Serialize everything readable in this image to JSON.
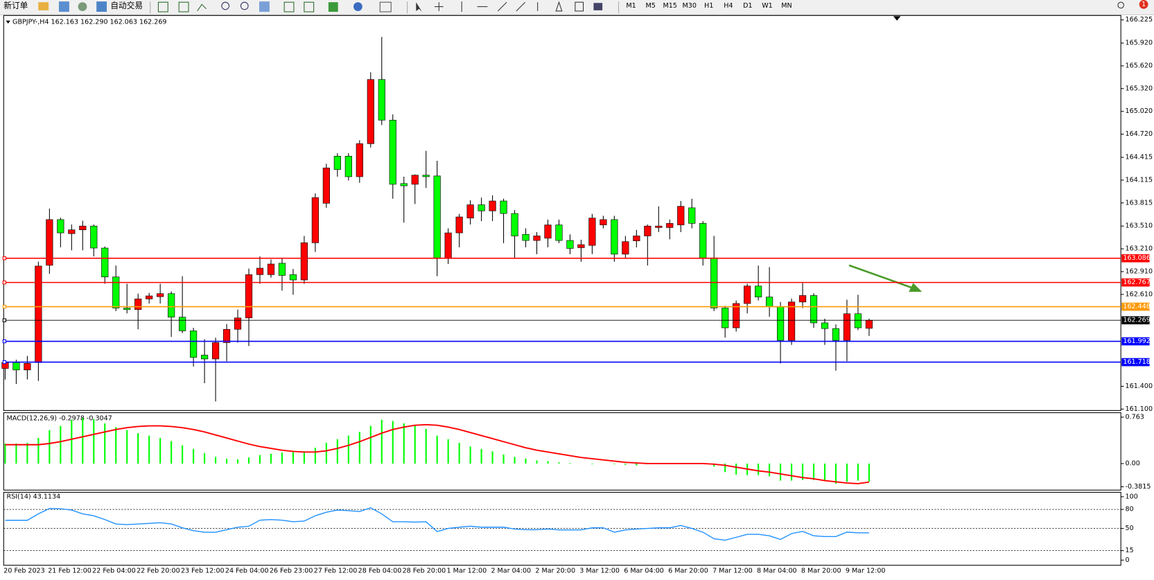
{
  "toolbar": {
    "new_order": "新订单",
    "auto_trading": "自动交易",
    "timeframes": [
      "M1",
      "M5",
      "M15",
      "M30",
      "H1",
      "H4",
      "D1",
      "W1",
      "MN"
    ],
    "badge": "1"
  },
  "chart_data": [
    {
      "type": "candlestick",
      "title": "GBPJPY-,H4  162.163 162.290 162.063 162.269",
      "categories": [
        "20 Feb 2023",
        null,
        null,
        null,
        "21 Feb 12:00",
        null,
        null,
        null,
        "22 Feb 04:00",
        null,
        null,
        null,
        "22 Feb 20:00",
        null,
        null,
        null,
        "23 Feb 12:00",
        null,
        null,
        null,
        "24 Feb 04:00",
        null,
        null,
        null,
        "26 Feb 23:00",
        null,
        null,
        null,
        "27 Feb 12:00",
        null,
        null,
        null,
        "28 Feb 04:00",
        null,
        null,
        null,
        "28 Feb 20:00",
        null,
        null,
        null,
        "1 Mar 12:00",
        null,
        null,
        null,
        "2 Mar 04:00",
        null,
        null,
        null,
        "2 Mar 20:00",
        null,
        null,
        null,
        "3 Mar 12:00",
        null,
        null,
        null,
        "6 Mar 04:00",
        null,
        null,
        null,
        "6 Mar 20:00",
        null,
        null,
        null,
        "7 Mar 12:00",
        null,
        null,
        null,
        "8 Mar 04:00",
        null,
        null,
        null,
        "8 Mar 20:00",
        null,
        null,
        null,
        "9 Mar 12:00",
        null,
        null
      ],
      "open": [
        161.634,
        161.712,
        161.615,
        161.712,
        162.993,
        163.595,
        163.41,
        163.46,
        163.51,
        163.22,
        162.84,
        162.43,
        162.41,
        162.55,
        162.58,
        162.62,
        162.31,
        162.13,
        161.81,
        161.76,
        161.975,
        162.15,
        162.3,
        162.87,
        162.87,
        163.02,
        162.87,
        162.8,
        163.29,
        163.81,
        164.43,
        164.43,
        164.16,
        164.595,
        165.44,
        164.905,
        164.07,
        164.06,
        164.18,
        164.17,
        163.09,
        163.42,
        163.615,
        163.79,
        163.71,
        163.84,
        163.675,
        163.4,
        163.32,
        163.35,
        163.525,
        163.32,
        163.225,
        163.255,
        163.525,
        163.595,
        163.14,
        163.315,
        163.38,
        163.49,
        163.49,
        163.525,
        163.75,
        163.545,
        163.09,
        162.43,
        162.17,
        162.49,
        162.72,
        162.575,
        162.45,
        162.005,
        162.51,
        162.595,
        162.235,
        162.16,
        162.005,
        162.355,
        162.163
      ],
      "high": [
        161.731,
        161.75,
        161.8,
        163.041,
        163.74,
        163.62,
        163.53,
        163.58,
        163.53,
        163.24,
        162.99,
        162.75,
        162.62,
        162.63,
        162.75,
        162.65,
        162.85,
        162.17,
        162.02,
        162.04,
        162.22,
        162.41,
        162.95,
        163.11,
        163.07,
        163.09,
        162.945,
        163.38,
        163.94,
        164.33,
        164.47,
        164.47,
        164.64,
        165.535,
        166.0,
        164.98,
        164.16,
        164.19,
        164.5,
        164.37,
        163.48,
        163.67,
        163.85,
        163.885,
        163.915,
        163.87,
        163.72,
        163.48,
        163.43,
        163.595,
        163.595,
        163.4,
        163.33,
        163.67,
        163.645,
        163.645,
        163.38,
        163.46,
        163.53,
        163.77,
        163.595,
        163.84,
        163.87,
        163.575,
        163.38,
        162.46,
        162.53,
        162.75,
        162.99,
        162.97,
        162.51,
        162.555,
        162.76,
        162.625,
        162.29,
        162.215,
        162.54,
        162.605,
        162.29
      ],
      "low": [
        161.488,
        161.43,
        161.49,
        161.47,
        162.88,
        163.23,
        163.19,
        163.19,
        163.11,
        162.75,
        162.39,
        162.36,
        162.15,
        162.49,
        162.49,
        162.05,
        162.1,
        161.66,
        161.44,
        161.2,
        161.73,
        161.975,
        161.93,
        162.75,
        162.83,
        162.66,
        162.605,
        162.75,
        163.17,
        163.75,
        164.16,
        164.11,
        164.08,
        164.545,
        164.84,
        163.87,
        163.555,
        163.8,
        164.012,
        162.85,
        163.01,
        163.23,
        163.53,
        163.575,
        163.575,
        163.285,
        163.09,
        163.23,
        163.14,
        163.23,
        163.285,
        163.14,
        163.04,
        163.14,
        163.48,
        163.04,
        163.09,
        163.23,
        162.99,
        163.43,
        163.335,
        163.43,
        163.48,
        162.99,
        162.39,
        162.04,
        162.12,
        162.36,
        162.53,
        162.315,
        161.7,
        161.945,
        162.43,
        162.17,
        161.945,
        161.605,
        161.73,
        162.14,
        162.063
      ],
      "close": [
        161.712,
        161.615,
        161.702,
        162.983,
        163.595,
        163.42,
        163.46,
        163.51,
        163.22,
        162.84,
        162.43,
        162.41,
        162.55,
        162.59,
        162.62,
        162.31,
        162.13,
        161.78,
        161.76,
        161.975,
        162.15,
        162.3,
        162.87,
        162.955,
        163.01,
        162.86,
        162.8,
        163.29,
        163.885,
        164.275,
        164.255,
        164.16,
        164.595,
        165.44,
        164.905,
        164.06,
        164.04,
        164.18,
        164.16,
        163.09,
        163.42,
        163.63,
        163.79,
        163.71,
        163.84,
        163.675,
        163.38,
        163.32,
        163.38,
        163.525,
        163.32,
        163.215,
        163.265,
        163.615,
        163.595,
        163.14,
        163.305,
        163.38,
        163.51,
        163.51,
        163.545,
        163.77,
        163.545,
        163.09,
        162.43,
        162.17,
        162.49,
        162.72,
        162.575,
        162.45,
        162.005,
        162.51,
        162.595,
        162.235,
        162.16,
        162.005,
        162.355,
        162.17,
        162.269
      ],
      "up_color": "#ff0000",
      "down_color": "#00ff00",
      "ylim": [
        161.081,
        166.283
      ],
      "yticks": [
        166.225,
        {
          "value": 165.92,
          "label": "165.920"
        },
        {
          "value": 165.62,
          "label": "165.620"
        },
        {
          "value": 165.32,
          "label": "165.320"
        },
        {
          "value": 165.02,
          "label": "165.020"
        },
        {
          "value": 164.72,
          "label": "164.720"
        },
        164.415,
        164.115,
        163.815,
        {
          "value": 163.51,
          "label": "163.510"
        },
        {
          "value": 163.21,
          "label": "163.210"
        },
        {
          "value": 162.91,
          "label": "162.910"
        },
        {
          "value": 162.61,
          "label": "162.610"
        },
        {
          "value": 161.4,
          "label": "161.400"
        },
        {
          "value": 161.1,
          "label": "161.100"
        }
      ],
      "levels": [
        {
          "value": 163.086,
          "color": "#ff0000"
        },
        {
          "value": 162.767,
          "color": "#ff0000"
        },
        {
          "value": 162.448,
          "color": "#ff9900"
        },
        {
          "value": 162.269,
          "color": "#000000"
        },
        {
          "value": 161.992,
          "color": "#0000ff"
        },
        {
          "value": 161.718,
          "color": "#0000ff"
        }
      ]
    },
    {
      "type": "macd",
      "title": "MACD(12,26,9) -0.2978 -0.3047",
      "series": [
        {
          "kind": "bar",
          "color": "#00ff00",
          "values": [
            0.33,
            0.33,
            0.34,
            0.42,
            0.55,
            0.62,
            0.72,
            0.75,
            0.73,
            0.66,
            0.6,
            0.55,
            0.5,
            0.46,
            0.42,
            0.37,
            0.3,
            0.24,
            0.17,
            0.11,
            0.08,
            0.07,
            0.1,
            0.14,
            0.16,
            0.18,
            0.19,
            0.2,
            0.26,
            0.34,
            0.4,
            0.46,
            0.52,
            0.62,
            0.72,
            0.7,
            0.66,
            0.62,
            0.57,
            0.46,
            0.4,
            0.34,
            0.28,
            0.24,
            0.2,
            0.15,
            0.11,
            0.08,
            0.05,
            0.04,
            0.02,
            0.01,
            0.0,
            -0.01,
            0.0,
            -0.01,
            -0.02,
            -0.03,
            -0.01,
            0.0,
            0.0,
            0.01,
            0.01,
            0.0,
            -0.05,
            -0.14,
            -0.18,
            -0.19,
            -0.19,
            -0.21,
            -0.28,
            -0.28,
            -0.27,
            -0.27,
            -0.29,
            -0.33,
            -0.3,
            -0.28,
            -0.2978
          ]
        },
        {
          "kind": "line",
          "color": "#ff0000",
          "values": [
            0.31,
            0.31,
            0.31,
            0.31,
            0.33,
            0.36,
            0.4,
            0.44,
            0.48,
            0.52,
            0.56,
            0.59,
            0.61,
            0.62,
            0.62,
            0.61,
            0.59,
            0.56,
            0.52,
            0.47,
            0.42,
            0.37,
            0.32,
            0.28,
            0.25,
            0.22,
            0.2,
            0.19,
            0.19,
            0.21,
            0.25,
            0.3,
            0.36,
            0.43,
            0.5,
            0.56,
            0.6,
            0.63,
            0.64,
            0.63,
            0.6,
            0.56,
            0.51,
            0.46,
            0.41,
            0.36,
            0.31,
            0.26,
            0.22,
            0.19,
            0.16,
            0.13,
            0.1,
            0.08,
            0.06,
            0.04,
            0.02,
            0.01,
            0.0,
            0.0,
            0.0,
            0.0,
            0.0,
            0.0,
            -0.01,
            -0.03,
            -0.06,
            -0.09,
            -0.12,
            -0.14,
            -0.17,
            -0.2,
            -0.23,
            -0.25,
            -0.28,
            -0.3,
            -0.32,
            -0.33,
            -0.3047
          ]
        }
      ],
      "ylim": [
        -0.436,
        0.836
      ],
      "yticks": [
        0.763,
        {
          "value": 0,
          "label": "0.00"
        },
        -0.3815
      ]
    },
    {
      "type": "line",
      "title": "RSI(14) 43.1134",
      "series": [
        {
          "color": "#1e90ff",
          "values": [
            62.8,
            62.8,
            62.8,
            73,
            81.4,
            81,
            79,
            73,
            70,
            64,
            57,
            56,
            57,
            58,
            59,
            57,
            51,
            46.5,
            44,
            44,
            48,
            52,
            53.5,
            63,
            64,
            63,
            60.5,
            61.6,
            70,
            75.6,
            79,
            78,
            76.7,
            82.6,
            73,
            60.5,
            60.5,
            60,
            60.5,
            45,
            50,
            52,
            53.5,
            52,
            52,
            52,
            49,
            48,
            48,
            49,
            47.7,
            47.7,
            47.7,
            51,
            51,
            44,
            47.7,
            49,
            50,
            51,
            51,
            54.7,
            50,
            44,
            33.7,
            31.4,
            36,
            40.7,
            40.7,
            38.4,
            32.6,
            41.9,
            45.3,
            38.4,
            37.2,
            37.2,
            44.2,
            43,
            43.1134
          ]
        }
      ],
      "ylim": [
        -8.1,
        107
      ],
      "yticks": [
        100,
        80,
        50,
        15,
        0
      ],
      "levels": [
        80,
        50,
        15
      ]
    }
  ]
}
